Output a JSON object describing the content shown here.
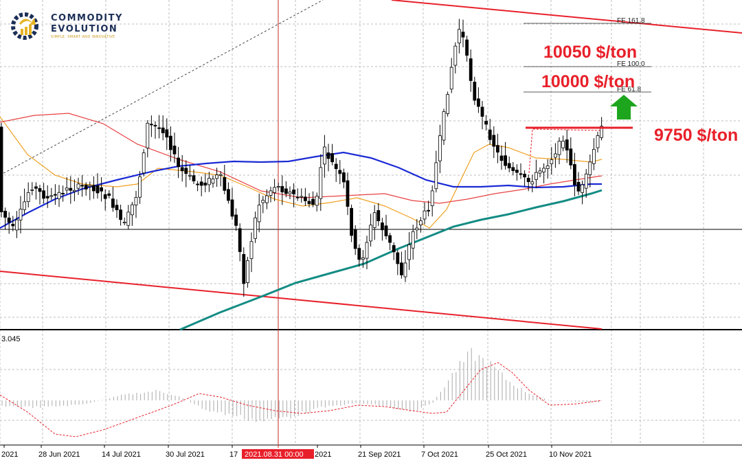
{
  "brand": {
    "name_line1": "COMMODITY",
    "name_line2": "EVOLUTION",
    "tagline": "SIMPLE. SMART AND INNOVATIVE",
    "colors": {
      "navy": "#1c2f57",
      "gold": "#e6b325"
    }
  },
  "chart_data": {
    "type": "candlestick",
    "price_annotations": [
      {
        "label": "10050 $/ton",
        "value": 10050,
        "color": "#e8202a"
      },
      {
        "label": "10000 $/ton",
        "value": 10000,
        "color": "#e8202a"
      },
      {
        "label": "9750 $/ton",
        "value": 9750,
        "color": "#e8202a"
      }
    ],
    "fibonacci_levels": [
      {
        "label": "FE 161.8",
        "value": 10200
      },
      {
        "label": "FE 100.0",
        "value": 10050
      },
      {
        "label": "FE 61.8",
        "value": 9990
      }
    ],
    "x_tick_labels": [
      "2021",
      "28 Jun 2021",
      "14 Jul 2021",
      "30 Jul 2021",
      "17",
      "2021",
      "21 Sep 2021",
      "7 Oct 2021",
      "25 Oct 2021",
      "10 Nov 2021"
    ],
    "cursor_time_label": "2021.08.31 00:00",
    "oscillator_value_label": "3.045",
    "arrow": {
      "direction": "up",
      "color": "#1ea51e"
    },
    "colors": {
      "channel": "#e8202a",
      "ma_fast": "#f0a020",
      "ma_mid": "#e84040",
      "ma_blue": "#1a2ad4",
      "ma_teal": "#138c84",
      "candle": "#000000",
      "cursor": "#c62828"
    }
  }
}
